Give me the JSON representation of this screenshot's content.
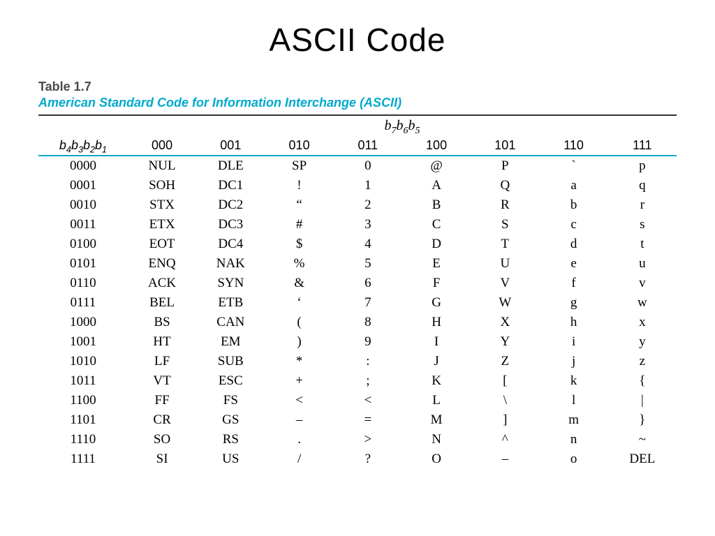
{
  "title": "ASCII Code",
  "table_number": "Table 1.7",
  "table_caption": "American Standard Code for Information Interchange (ASCII)",
  "super_header_html": "b<sub>7</sub>b<sub>6</sub>b<sub>5</sub>",
  "row_header_html": "b<sub>4</sub>b<sub>3</sub>b<sub>2</sub>b<sub>1</sub>",
  "colors": {
    "accent": "#00aacc",
    "text": "#000000",
    "rule": "#333333",
    "caption_gray": "#4a4a4a"
  },
  "fonts": {
    "title_family": "Century Gothic",
    "body_family": "Times New Roman",
    "header_family": "Arial",
    "title_size_pt": 34,
    "body_size_pt": 14
  },
  "columns": [
    "000",
    "001",
    "010",
    "011",
    "100",
    "101",
    "110",
    "111"
  ],
  "rows": [
    {
      "label": "0000",
      "cells": [
        "NUL",
        "DLE",
        "SP",
        "0",
        "@",
        "P",
        "`",
        "p"
      ]
    },
    {
      "label": "0001",
      "cells": [
        "SOH",
        "DC1",
        "!",
        "1",
        "A",
        "Q",
        "a",
        "q"
      ]
    },
    {
      "label": "0010",
      "cells": [
        "STX",
        "DC2",
        "“",
        "2",
        "B",
        "R",
        "b",
        "r"
      ]
    },
    {
      "label": "0011",
      "cells": [
        "ETX",
        "DC3",
        "#",
        "3",
        "C",
        "S",
        "c",
        "s"
      ]
    },
    {
      "label": "0100",
      "cells": [
        "EOT",
        "DC4",
        "$",
        "4",
        "D",
        "T",
        "d",
        "t"
      ]
    },
    {
      "label": "0101",
      "cells": [
        "ENQ",
        "NAK",
        "%",
        "5",
        "E",
        "U",
        "e",
        "u"
      ]
    },
    {
      "label": "0110",
      "cells": [
        "ACK",
        "SYN",
        "&",
        "6",
        "F",
        "V",
        "f",
        "v"
      ]
    },
    {
      "label": "0111",
      "cells": [
        "BEL",
        "ETB",
        "‘",
        "7",
        "G",
        "W",
        "g",
        "w"
      ]
    },
    {
      "label": "1000",
      "cells": [
        "BS",
        "CAN",
        "(",
        "8",
        "H",
        "X",
        "h",
        "x"
      ]
    },
    {
      "label": "1001",
      "cells": [
        "HT",
        "EM",
        ")",
        "9",
        "I",
        "Y",
        "i",
        "y"
      ]
    },
    {
      "label": "1010",
      "cells": [
        "LF",
        "SUB",
        "*",
        ":",
        "J",
        "Z",
        "j",
        "z"
      ]
    },
    {
      "label": "1011",
      "cells": [
        "VT",
        "ESC",
        "+",
        ";",
        "K",
        "[",
        "k",
        "{"
      ]
    },
    {
      "label": "1100",
      "cells": [
        "FF",
        "FS",
        "<",
        "<",
        "L",
        "\\",
        "l",
        "|"
      ]
    },
    {
      "label": "1101",
      "cells": [
        "CR",
        "GS",
        "–",
        "=",
        "M",
        "]",
        "m",
        "}"
      ]
    },
    {
      "label": "1110",
      "cells": [
        "SO",
        "RS",
        ".",
        ">",
        "N",
        "^",
        "n",
        "~"
      ]
    },
    {
      "label": "1111",
      "cells": [
        "SI",
        "US",
        "/",
        "?",
        "O",
        "–",
        "o",
        "DEL"
      ]
    }
  ]
}
